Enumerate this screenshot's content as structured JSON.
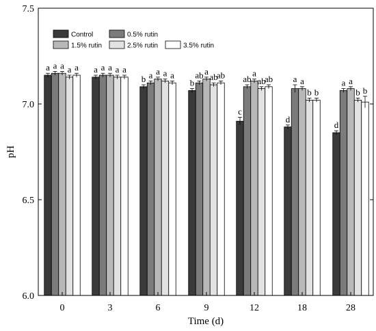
{
  "chart_data": {
    "type": "bar",
    "xlabel": "Time (d)",
    "ylabel": "pH",
    "categories": [
      "0",
      "3",
      "6",
      "9",
      "12",
      "18",
      "28"
    ],
    "ylim": [
      6.0,
      7.5
    ],
    "yticks": [
      "6.0",
      "6.5",
      "7.0",
      "7.5"
    ],
    "grid": false,
    "legend_position": "top-left",
    "series": [
      {
        "name": "Control",
        "color": "#3a3a3a",
        "values": [
          7.15,
          7.14,
          7.09,
          7.07,
          6.91,
          6.88,
          6.85
        ],
        "errors": [
          0.01,
          0.01,
          0.01,
          0.01,
          0.02,
          0.01,
          0.01
        ],
        "labels": [
          "a",
          "a",
          "b",
          "b",
          "c",
          "d",
          "d"
        ]
      },
      {
        "name": "0.5% rutin",
        "color": "#7b7b7b",
        "values": [
          7.16,
          7.15,
          7.11,
          7.11,
          7.09,
          7.08,
          7.07
        ],
        "errors": [
          0.01,
          0.01,
          0.01,
          0.01,
          0.01,
          0.02,
          0.01
        ],
        "labels": [
          "a",
          "a",
          "a",
          "ab",
          "ab",
          "a",
          "a"
        ]
      },
      {
        "name": "1.5% rutin",
        "color": "#b8b8b8",
        "values": [
          7.16,
          7.15,
          7.13,
          7.13,
          7.12,
          7.08,
          7.08
        ],
        "errors": [
          0.01,
          0.01,
          0.01,
          0.01,
          0.01,
          0.01,
          0.01
        ],
        "labels": [
          "a",
          "a",
          "a",
          "a",
          "a",
          "a",
          "a"
        ]
      },
      {
        "name": "2.5% rutin",
        "color": "#e2e2e2",
        "values": [
          7.14,
          7.14,
          7.12,
          7.1,
          7.08,
          7.02,
          7.02
        ],
        "errors": [
          0.01,
          0.01,
          0.01,
          0.01,
          0.01,
          0.01,
          0.01
        ],
        "labels": [
          "a",
          "a",
          "a",
          "ab",
          "ab",
          "b",
          "b"
        ]
      },
      {
        "name": "3.5% rutin",
        "color": "#ffffff",
        "values": [
          7.15,
          7.14,
          7.11,
          7.11,
          7.09,
          7.02,
          7.01
        ],
        "errors": [
          0.01,
          0.01,
          0.01,
          0.01,
          0.01,
          0.01,
          0.03
        ],
        "labels": [
          "a",
          "a",
          "a",
          "ab",
          "ab",
          "b",
          "b"
        ]
      }
    ]
  }
}
